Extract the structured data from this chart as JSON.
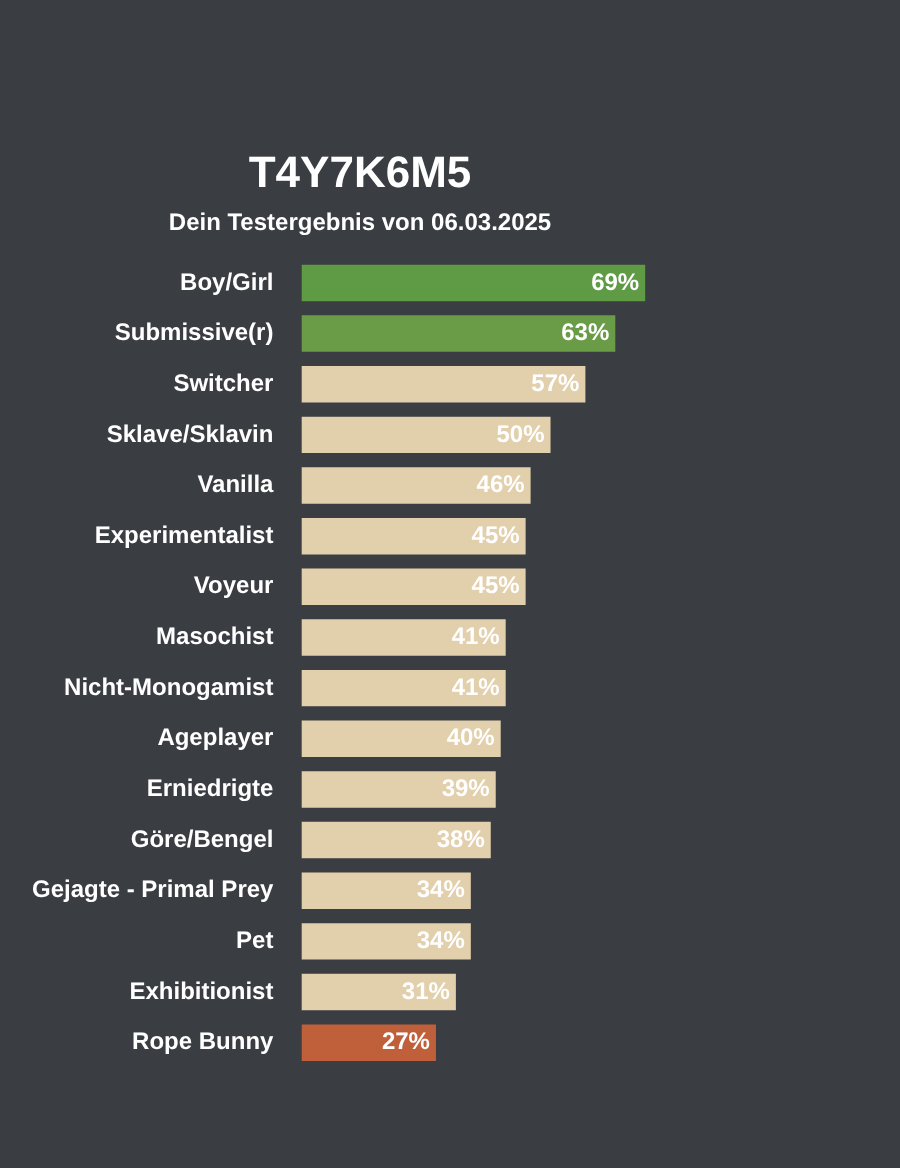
{
  "chart_data": {
    "type": "bar",
    "orientation": "horizontal",
    "title": "T4Y7K6M5",
    "subtitle": "Dein Testergebnis von 06.03.2025",
    "categories": [
      "Boy/Girl",
      "Submissive(r)",
      "Switcher",
      "Sklave/Sklavin",
      "Vanilla",
      "Experimentalist",
      "Voyeur",
      "Masochist",
      "Nicht-Monogamist",
      "Ageplayer",
      "Erniedrigte",
      "Göre/Bengel",
      "Gejagte - Primal Prey",
      "Pet",
      "Exhibitionist",
      "Rope Bunny"
    ],
    "values": [
      69,
      63,
      57,
      50,
      46,
      45,
      45,
      41,
      41,
      40,
      39,
      38,
      34,
      34,
      31,
      27
    ],
    "value_labels": [
      "69%",
      "63%",
      "57%",
      "50%",
      "46%",
      "45%",
      "45%",
      "41%",
      "41%",
      "40%",
      "39%",
      "38%",
      "34%",
      "34%",
      "31%",
      "27%"
    ],
    "colors": [
      "#5f9a45",
      "#6a9c48",
      "#e2cfac",
      "#e2cfac",
      "#e2cfac",
      "#e2cfac",
      "#e2cfac",
      "#e2cfac",
      "#e2cfac",
      "#e2cfac",
      "#e2cfac",
      "#e2cfac",
      "#e2cfac",
      "#e2cfac",
      "#e2cfac",
      "#c0603a"
    ],
    "tick_labels": "y"
  }
}
